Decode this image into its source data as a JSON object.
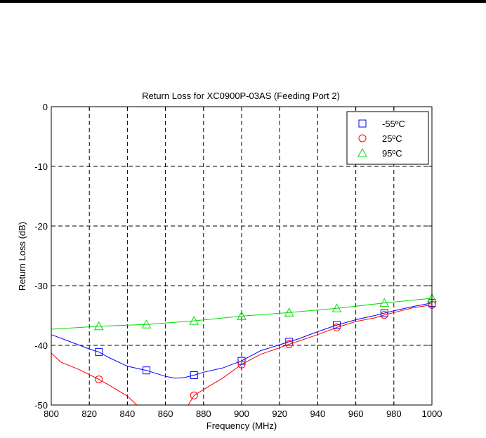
{
  "chart_data": {
    "type": "line",
    "title": "Return Loss for XC0900P-03AS (Feeding Port 2)",
    "xlabel": "Frequency (MHz)",
    "ylabel": "Return Loss (dB)",
    "xlim": [
      800,
      1000
    ],
    "ylim": [
      -50,
      0
    ],
    "xticks": [
      800,
      820,
      840,
      860,
      880,
      900,
      920,
      940,
      960,
      980,
      1000
    ],
    "yticks": [
      -50,
      -40,
      -30,
      -20,
      -10,
      0
    ],
    "grid": true,
    "legend_position": "top-right",
    "series": [
      {
        "name": "-55ºC",
        "color": "#0000ff",
        "marker": "square",
        "line": [
          [
            800,
            -38.2
          ],
          [
            810,
            -39.4
          ],
          [
            820,
            -40.6
          ],
          [
            825,
            -41.1
          ],
          [
            830,
            -42.0
          ],
          [
            840,
            -43.5
          ],
          [
            850,
            -44.2
          ],
          [
            860,
            -45.2
          ],
          [
            865,
            -45.5
          ],
          [
            870,
            -45.4
          ],
          [
            875,
            -45.0
          ],
          [
            880,
            -44.5
          ],
          [
            890,
            -43.8
          ],
          [
            900,
            -42.6
          ],
          [
            910,
            -40.9
          ],
          [
            920,
            -39.9
          ],
          [
            925,
            -39.4
          ],
          [
            930,
            -38.9
          ],
          [
            940,
            -37.7
          ],
          [
            950,
            -36.6
          ],
          [
            960,
            -35.7
          ],
          [
            970,
            -35.0
          ],
          [
            980,
            -34.2
          ],
          [
            990,
            -33.5
          ],
          [
            1000,
            -32.9
          ]
        ],
        "markers": [
          [
            825,
            -41.1
          ],
          [
            850,
            -44.2
          ],
          [
            875,
            -45.0
          ],
          [
            900,
            -42.6
          ],
          [
            925,
            -39.4
          ],
          [
            950,
            -36.6
          ],
          [
            975,
            -34.6
          ],
          [
            1000,
            -32.9
          ]
        ]
      },
      {
        "name": "25ºC",
        "color": "#ff0000",
        "marker": "circle",
        "line": [
          [
            800,
            -41.3
          ],
          [
            805,
            -42.8
          ],
          [
            815,
            -44.1
          ],
          [
            825,
            -45.7
          ],
          [
            830,
            -46.6
          ],
          [
            840,
            -48.5
          ],
          [
            845,
            -50.0
          ],
          [
            872,
            -50.0
          ],
          [
            875,
            -48.4
          ],
          [
            880,
            -47.4
          ],
          [
            890,
            -45.5
          ],
          [
            900,
            -43.2
          ],
          [
            910,
            -41.5
          ],
          [
            920,
            -40.4
          ],
          [
            925,
            -39.8
          ],
          [
            930,
            -39.3
          ],
          [
            940,
            -38.2
          ],
          [
            950,
            -37.0
          ],
          [
            960,
            -36.0
          ],
          [
            970,
            -35.4
          ],
          [
            975,
            -34.9
          ],
          [
            980,
            -34.5
          ],
          [
            990,
            -33.7
          ],
          [
            1000,
            -33.2
          ]
        ],
        "markers": [
          [
            825,
            -45.7
          ],
          [
            875,
            -48.4
          ],
          [
            900,
            -43.2
          ],
          [
            925,
            -39.8
          ],
          [
            950,
            -37.0
          ],
          [
            975,
            -34.9
          ],
          [
            1000,
            -33.2
          ]
        ]
      },
      {
        "name": "95ºC",
        "color": "#00dd00",
        "marker": "triangle",
        "line": [
          [
            800,
            -37.3
          ],
          [
            825,
            -36.8
          ],
          [
            850,
            -36.5
          ],
          [
            875,
            -35.9
          ],
          [
            900,
            -35.1
          ],
          [
            925,
            -34.5
          ],
          [
            950,
            -33.8
          ],
          [
            975,
            -32.9
          ],
          [
            1000,
            -32.1
          ]
        ],
        "markers": [
          [
            825,
            -36.8
          ],
          [
            850,
            -36.5
          ],
          [
            875,
            -35.9
          ],
          [
            900,
            -35.1
          ],
          [
            925,
            -34.5
          ],
          [
            950,
            -33.8
          ],
          [
            975,
            -32.9
          ],
          [
            1000,
            -32.1
          ]
        ]
      }
    ]
  }
}
